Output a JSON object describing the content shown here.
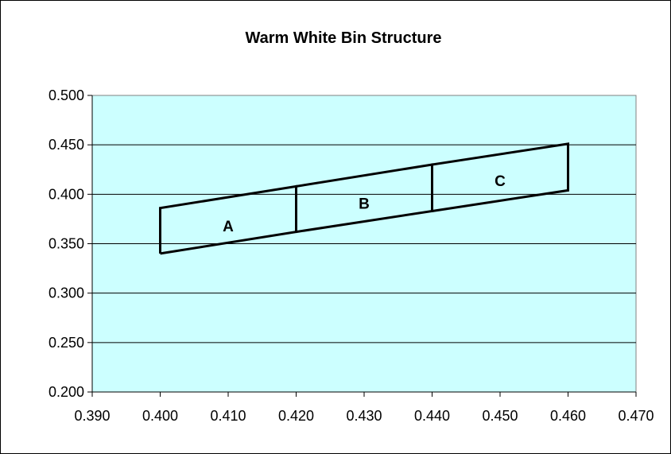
{
  "chart_data": {
    "type": "line",
    "title": "Warm White Bin Structure",
    "xlabel": "",
    "ylabel": "",
    "xlim": [
      0.39,
      0.47
    ],
    "ylim": [
      0.2,
      0.5
    ],
    "x_ticks": [
      "0.390",
      "0.400",
      "0.410",
      "0.420",
      "0.430",
      "0.440",
      "0.450",
      "0.460",
      "0.470"
    ],
    "y_ticks": [
      "0.200",
      "0.250",
      "0.300",
      "0.350",
      "0.400",
      "0.450",
      "0.500"
    ],
    "grid": "horizontal",
    "plot_background": "#ccffff",
    "series": [
      {
        "name": "A",
        "x": [
          0.4,
          0.42,
          0.42,
          0.4,
          0.4
        ],
        "y": [
          0.34,
          0.362,
          0.408,
          0.386,
          0.34
        ],
        "label_at": [
          0.41,
          0.368
        ]
      },
      {
        "name": "B",
        "x": [
          0.42,
          0.44,
          0.44,
          0.42,
          0.42
        ],
        "y": [
          0.362,
          0.383,
          0.43,
          0.408,
          0.362
        ],
        "label_at": [
          0.43,
          0.391
        ]
      },
      {
        "name": "C",
        "x": [
          0.44,
          0.46,
          0.46,
          0.44,
          0.44
        ],
        "y": [
          0.383,
          0.404,
          0.451,
          0.43,
          0.383
        ],
        "label_at": [
          0.45,
          0.414
        ]
      }
    ]
  }
}
